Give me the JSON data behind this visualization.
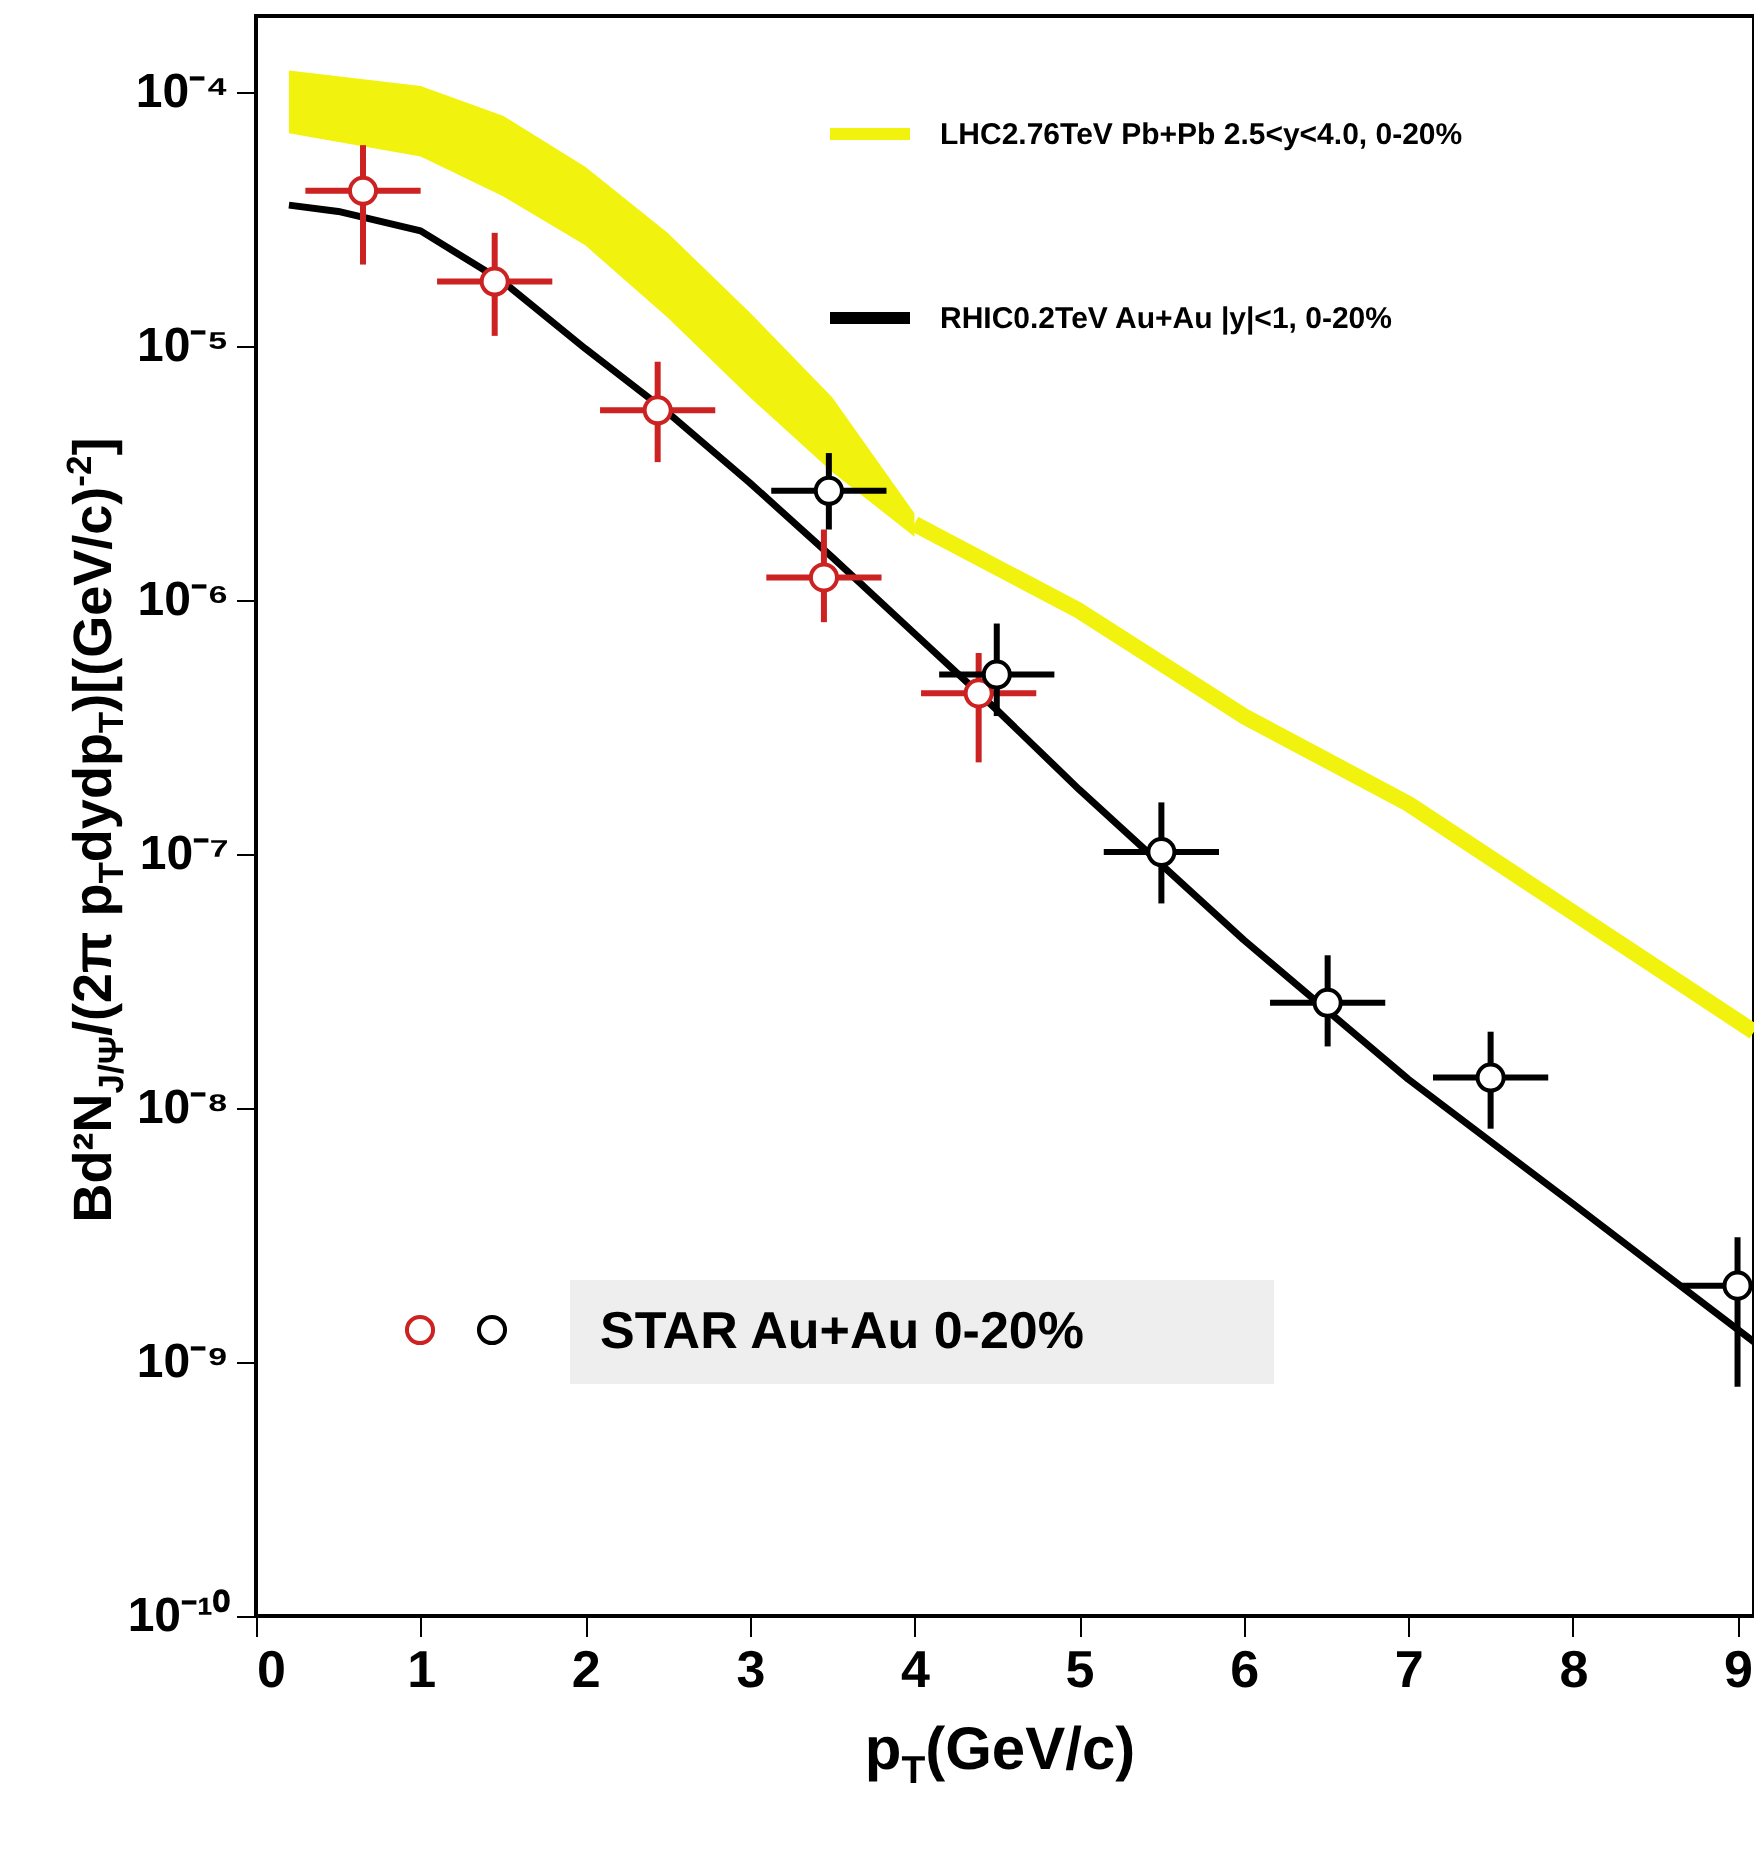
{
  "chart_data": {
    "type": "scatter",
    "xlabel": "p$_{T}$(GeV/c)",
    "ylabel": "Bd²N$_{J/Ψ}$/(2π p$_{T}$dydp$_{T}$)[(GeV/c)$^{-2}$]",
    "log": "y",
    "xlim": [
      0,
      9.1
    ],
    "xticks": [
      0,
      1,
      2,
      3,
      4,
      5,
      6,
      7,
      8,
      9
    ],
    "ylim": [
      1e-10,
      0.0002
    ],
    "yticks": [
      {
        "value": 1e-10,
        "label": "10⁻¹⁰"
      },
      {
        "value": 1e-09,
        "label": "10⁻⁹"
      },
      {
        "value": 1e-08,
        "label": "10⁻⁸"
      },
      {
        "value": 1e-07,
        "label": "10⁻⁷"
      },
      {
        "value": 1e-06,
        "label": "10⁻⁶"
      },
      {
        "value": 1e-05,
        "label": "10⁻⁵"
      },
      {
        "value": 0.0001,
        "label": "10⁻⁴"
      }
    ],
    "legend": "top right",
    "grid": false,
    "series": [
      {
        "type": "line",
        "name": "LHC2.76TeV Pb+Pb 2.5<y<4.0, 0-20%",
        "color": "#f2f20f",
        "x": [
          0.2,
          1,
          1.5,
          2,
          2.5,
          3,
          3.5,
          4,
          5,
          6,
          7,
          8,
          9.1
        ],
        "values": [
          null,
          null,
          null,
          null,
          null,
          null,
          null,
          2e-06,
          9.1e-07,
          3.5e-07,
          1.58e-07,
          5.9e-08,
          2e-08
        ],
        "lower": [
          6.9e-05,
          5.6e-05,
          3.9e-05,
          2.5e-05,
          1.3e-05,
          6.3e-06,
          3.2e-06,
          1.78e-06,
          null,
          null,
          null,
          null,
          null
        ],
        "upper": [
          0.000122,
          0.000106,
          8.1e-05,
          5.1e-05,
          2.8e-05,
          1.36e-05,
          6.3e-06,
          2.2e-06,
          null,
          null,
          null,
          null,
          null
        ]
      },
      {
        "type": "line",
        "name": "RHIC0.2TeV Au+Au |y|<1, 0-20%",
        "color": "#000000",
        "x": [
          0.2,
          0.5,
          1,
          1.5,
          2,
          2.5,
          3,
          3.5,
          4,
          4.5,
          5,
          6,
          7,
          8,
          9.1
        ],
        "values": [
          3.6e-05,
          3.4e-05,
          2.85e-05,
          1.8e-05,
          9.8e-06,
          5.5e-06,
          2.9e-06,
          1.48e-06,
          7.4e-07,
          3.7e-07,
          1.8e-07,
          4.6e-08,
          1.3e-08,
          4.2e-09,
          1.2e-09
        ]
      },
      {
        "color": "#cc2222",
        "marker": "circle",
        "x": [
          0.65,
          1.45,
          2.44,
          3.45,
          4.39
        ],
        "values": [
          4.1e-05,
          1.8e-05,
          5.6e-06,
          1.23e-06,
          4.3e-07
        ],
        "errors": [
          [
            2.1e-05,
            6.2e-05
          ],
          [
            1.1e-05,
            2.8e-05
          ],
          [
            3.5e-06,
            8.7e-06
          ],
          [
            8.2e-07,
            1.9e-06
          ],
          [
            2.3e-07,
            6.2e-07
          ]
        ],
        "xerrors": [
          0.35,
          0.35,
          0.35,
          0.35,
          0.35
        ]
      },
      {
        "name": "STAR Au+Au 0-20%",
        "color": "#000000",
        "marker": "circle",
        "x": [
          3.48,
          4.5,
          5.5,
          6.51,
          7.5,
          9.0
        ],
        "values": [
          2.7e-06,
          5.1e-07,
          1.02e-07,
          2.6e-08,
          1.32e-08,
          2e-09
        ],
        "errors": [
          [
            1.9e-06,
            3.8e-06
          ],
          [
            3.5e-07,
            8.1e-07
          ],
          [
            6.4e-08,
            1.6e-07
          ],
          [
            1.75e-08,
            4e-08
          ],
          [
            8.3e-09,
            2e-08
          ],
          [
            8e-10,
            3.1e-09
          ]
        ],
        "xerrors": [
          0.35,
          0.35,
          0.35,
          0.35,
          0.35,
          0.35
        ]
      }
    ]
  }
}
